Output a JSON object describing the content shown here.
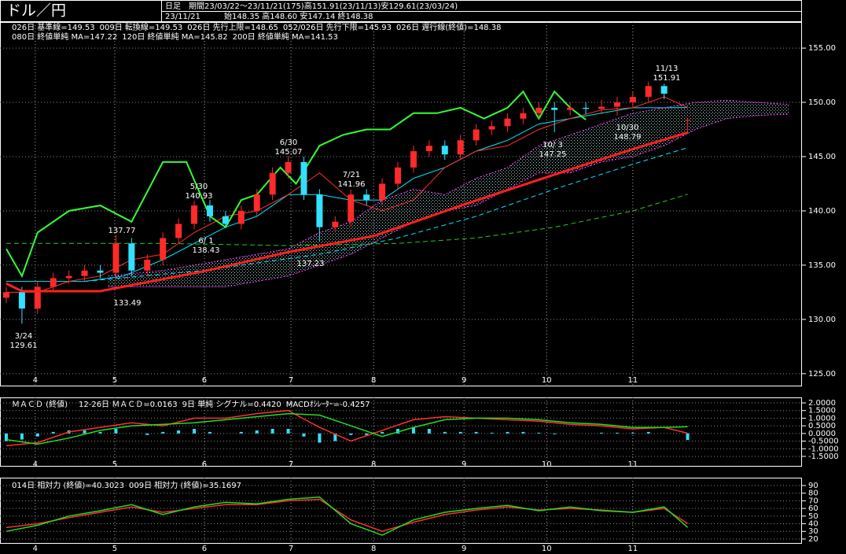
{
  "header": {
    "title": "ドル／円",
    "interval": "日足",
    "period": "期間23/03/22～23/11/21(175)高151.91(23/11/13)安129.61(23/03/24)",
    "date": "23/11/21",
    "ohlc": "始148.35 高148.60 安147.14 終148.38"
  },
  "chart_data": [
    {
      "type": "candlestick",
      "x": [
        0,
        4,
        8,
        12,
        16,
        20,
        24,
        28,
        32,
        36,
        40,
        44,
        48,
        52,
        56,
        60,
        64,
        68,
        72,
        76,
        80,
        84,
        88,
        92,
        96,
        100,
        104,
        108,
        112,
        116,
        120,
        124,
        128,
        132,
        136,
        140,
        144,
        148,
        152,
        156,
        160,
        164,
        168,
        174
      ],
      "open": [
        132.0,
        132.5,
        131.0,
        133.0,
        133.8,
        134.0,
        134.5,
        134.3,
        137.0,
        134.5,
        135.5,
        137.5,
        138.8,
        140.5,
        139.5,
        138.8,
        140.0,
        141.5,
        143.5,
        144.5,
        141.5,
        138.5,
        139.0,
        141.5,
        141.0,
        142.5,
        144.0,
        145.5,
        146.0,
        145.2,
        146.5,
        147.5,
        147.8,
        148.5,
        149.0,
        149.5,
        149.3,
        149.5,
        149.4,
        149.6,
        150.0,
        150.5,
        151.5,
        148.35
      ],
      "high": [
        133.0,
        133.0,
        133.5,
        134.3,
        134.5,
        135.0,
        135.0,
        137.77,
        137.5,
        136.0,
        138.0,
        139.3,
        140.93,
        141.0,
        140.0,
        140.5,
        142.0,
        144.0,
        145.07,
        145.0,
        142.0,
        139.5,
        141.96,
        142.0,
        143.0,
        144.5,
        146.0,
        146.5,
        146.5,
        147.0,
        148.0,
        148.3,
        149.0,
        149.5,
        150.0,
        150.0,
        150.0,
        150.0,
        150.2,
        150.5,
        151.0,
        151.91,
        151.7,
        148.6
      ],
      "low": [
        131.5,
        129.61,
        130.5,
        132.5,
        133.3,
        133.5,
        133.8,
        133.8,
        134.0,
        134.0,
        135.0,
        137.0,
        138.3,
        139.0,
        138.43,
        138.3,
        139.5,
        141.0,
        143.0,
        141.0,
        137.23,
        138.0,
        138.5,
        140.5,
        140.5,
        142.0,
        143.5,
        145.0,
        144.7,
        144.8,
        146.0,
        147.0,
        147.3,
        148.0,
        148.5,
        147.25,
        148.8,
        148.9,
        148.9,
        148.79,
        149.5,
        150.0,
        150.3,
        147.14
      ],
      "close": [
        132.5,
        131.0,
        133.0,
        133.8,
        134.0,
        134.5,
        134.3,
        137.0,
        134.5,
        135.5,
        137.5,
        138.8,
        140.5,
        139.5,
        138.8,
        140.0,
        141.5,
        143.5,
        144.5,
        141.5,
        138.5,
        139.0,
        141.5,
        141.0,
        142.5,
        144.0,
        145.5,
        146.0,
        145.2,
        146.5,
        147.5,
        147.8,
        148.5,
        149.0,
        149.5,
        149.3,
        149.5,
        149.4,
        149.6,
        150.0,
        150.5,
        151.5,
        150.8,
        148.38
      ],
      "up_color": "#ff2a2a",
      "down_color": "#33e0ff",
      "lines": [
        {
          "name": "026日 基準線=149.53",
          "color": "#00e8ff",
          "width": 1,
          "x": [
            0,
            20,
            30,
            40,
            48,
            56,
            64,
            72,
            80,
            88,
            96,
            104,
            112,
            120,
            128,
            136,
            144,
            152,
            160,
            168,
            174
          ],
          "values": [
            133.5,
            133.5,
            134.0,
            135.5,
            137.0,
            138.5,
            139.5,
            141.5,
            141.5,
            141.0,
            141.0,
            143.0,
            144.0,
            145.5,
            146.5,
            148.0,
            148.5,
            149.0,
            149.5,
            149.5,
            149.53
          ]
        },
        {
          "name": "009日 転換線=149.53",
          "color": "#ff3030",
          "width": 1,
          "x": [
            0,
            8,
            16,
            24,
            32,
            40,
            48,
            56,
            64,
            72,
            80,
            88,
            96,
            104,
            112,
            120,
            128,
            136,
            144,
            152,
            160,
            168,
            174
          ],
          "values": [
            132.5,
            132.5,
            133.5,
            134.0,
            135.5,
            136.0,
            138.0,
            139.5,
            140.0,
            141.5,
            143.5,
            141.0,
            140.0,
            141.0,
            144.0,
            145.5,
            146.0,
            147.5,
            148.5,
            149.3,
            149.5,
            150.5,
            149.53
          ]
        },
        {
          "name": "026日 先行上限=148.65",
          "color": "#ff40ff",
          "width": 1,
          "dash": "2,2",
          "x": [
            26,
            40,
            56,
            72,
            80,
            88,
            96,
            104,
            112,
            120,
            128,
            136,
            144,
            152,
            160,
            168,
            176,
            184,
            192,
            200
          ],
          "values": [
            134.0,
            134.5,
            135.5,
            136.5,
            138.0,
            139.0,
            141.0,
            142.0,
            141.5,
            143.0,
            144.0,
            146.0,
            147.0,
            148.0,
            149.0,
            149.5,
            150.0,
            150.2,
            150.0,
            149.8
          ]
        },
        {
          "name": "052/026日 先行下限=145.93",
          "color": "#ff40ff",
          "width": 1,
          "dash": "2,2",
          "x": [
            26,
            40,
            56,
            72,
            80,
            88,
            96,
            104,
            112,
            120,
            128,
            136,
            144,
            152,
            160,
            168,
            176,
            184,
            192,
            200
          ],
          "values": [
            133.0,
            133.0,
            133.0,
            134.0,
            135.0,
            136.0,
            137.5,
            139.0,
            140.0,
            140.5,
            142.0,
            143.5,
            143.5,
            144.5,
            145.0,
            146.0,
            147.5,
            148.5,
            148.8,
            148.9
          ]
        },
        {
          "name": "026日 遅行線(終値)=148.38",
          "color": "#33ff33",
          "width": 2,
          "x": [
            0,
            4,
            8,
            16,
            24,
            32,
            40,
            46,
            52,
            56,
            60,
            64,
            70,
            74,
            80,
            86,
            92,
            98,
            104,
            110,
            116,
            122,
            128,
            132,
            136,
            140,
            144,
            148
          ],
          "values": [
            136.5,
            134.0,
            138.0,
            140.0,
            140.5,
            139.0,
            144.5,
            144.5,
            139.5,
            138.5,
            141.0,
            141.5,
            144.0,
            142.5,
            146.0,
            147.0,
            147.5,
            147.5,
            149.0,
            149.0,
            149.5,
            148.5,
            149.5,
            151.0,
            148.5,
            151.0,
            149.5,
            148.4
          ]
        },
        {
          "name": "080日 終値単純 MA=147.22",
          "color": "#ff2020",
          "width": 3,
          "x": [
            0,
            4,
            24,
            50,
            72,
            94,
            117,
            138,
            160,
            174
          ],
          "values": [
            133.3,
            132.6,
            132.6,
            134.4,
            136.2,
            137.7,
            140.6,
            143.1,
            145.7,
            147.22
          ]
        },
        {
          "name": "120日 終値単純 MA=145.82",
          "color": "#00e8ff",
          "width": 1,
          "dash": "6,4",
          "x": [
            20,
            50,
            80,
            100,
            120,
            140,
            160,
            174
          ],
          "values": [
            133.5,
            134.5,
            136.0,
            137.5,
            139.5,
            142.0,
            144.3,
            145.82
          ]
        },
        {
          "name": "200日 終値単純 MA=141.53",
          "color": "#22cc22",
          "width": 1,
          "dash": "6,4",
          "x": [
            0,
            40,
            72,
            100,
            120,
            140,
            160,
            174
          ],
          "values": [
            137.0,
            137.0,
            136.8,
            137.0,
            137.5,
            138.5,
            140.0,
            141.53
          ]
        }
      ],
      "annotations": [
        {
          "lines": [
            "11/13",
            "151.91"
          ],
          "color": "#ff3030"
        },
        {
          "lines": [
            "10/30",
            "148.79"
          ],
          "color": "#33e0ff"
        },
        {
          "lines": [
            "10/ 3",
            "147.25"
          ],
          "color": "#33e0ff"
        },
        {
          "lines": [
            "7/21",
            "141.96"
          ],
          "color": "#ff3030"
        },
        {
          "lines": [
            "6/30",
            "145.07"
          ],
          "color": "#ff3030"
        },
        {
          "lines": [
            "5/30",
            "140.93"
          ],
          "color": "#ff3030"
        },
        {
          "lines": [
            "137.77"
          ],
          "color": "#ff3030"
        },
        {
          "lines": [
            "6/ 1",
            "138.43"
          ],
          "color": "#33e0ff"
        },
        {
          "lines": [
            "137.23"
          ],
          "color": "#33e0ff"
        },
        {
          "lines": [
            "133.49"
          ],
          "color": "#33e0ff"
        },
        {
          "lines": [
            "3/24",
            "129.61"
          ],
          "color": "#33e0ff"
        }
      ],
      "xlim": [
        -1.6,
        203.2
      ],
      "xticks": [
        {
          "value": 7.4,
          "label": "4"
        },
        {
          "value": 27.7,
          "label": "5"
        },
        {
          "value": 50.6,
          "label": "6"
        },
        {
          "value": 72.7,
          "label": "7"
        },
        {
          "value": 93.8,
          "label": "8"
        },
        {
          "value": 116.9,
          "label": "9"
        },
        {
          "value": 138,
          "label": "10"
        },
        {
          "value": 160,
          "label": "11"
        }
      ],
      "ylim": [
        123.9,
        157.4
      ],
      "yticks": [
        {
          "value": 125,
          "label": "125.00"
        },
        {
          "value": 130,
          "label": "130.00"
        },
        {
          "value": 135,
          "label": "135.00"
        },
        {
          "value": 140,
          "label": "140.00"
        },
        {
          "value": 145,
          "label": "145.00"
        },
        {
          "value": 150,
          "label": "150.00"
        },
        {
          "value": 155,
          "label": "155.00"
        }
      ],
      "grid": true
    },
    {
      "type": "macd",
      "title": "ＭＡＣＤ (終値)",
      "x": [
        0,
        8,
        16,
        24,
        32,
        40,
        48,
        56,
        64,
        72,
        80,
        88,
        96,
        104,
        112,
        120,
        128,
        136,
        144,
        152,
        160,
        168,
        174
      ],
      "series": [
        {
          "name": "12-26日 ＭＡＣＤ=0.0163",
          "color": "#ff3030",
          "values": [
            -0.8,
            -0.6,
            0.1,
            0.4,
            0.7,
            0.5,
            1.0,
            1.0,
            1.3,
            1.5,
            0.4,
            -0.5,
            0.2,
            0.9,
            1.1,
            1.0,
            0.9,
            0.8,
            0.6,
            0.5,
            0.3,
            0.4,
            0.0163
          ]
        },
        {
          "name": "9日 単純 シグナル=0.4420",
          "color": "#22dd22",
          "values": [
            -0.4,
            -0.7,
            -0.3,
            0.2,
            0.5,
            0.6,
            0.7,
            0.9,
            1.1,
            1.3,
            1.2,
            0.5,
            -0.2,
            0.4,
            0.9,
            1.0,
            1.0,
            0.9,
            0.7,
            0.6,
            0.4,
            0.4,
            0.442
          ]
        }
      ],
      "histogram": {
        "name": "MACDｵｼﾚｰﾀｰ=-0.4257",
        "color": "#33e0ff",
        "x": [
          0,
          4,
          8,
          12,
          16,
          20,
          24,
          28,
          32,
          36,
          40,
          44,
          48,
          52,
          56,
          60,
          64,
          68,
          72,
          76,
          80,
          84,
          88,
          92,
          96,
          100,
          104,
          108,
          112,
          116,
          120,
          124,
          128,
          132,
          136,
          140,
          144,
          148,
          152,
          156,
          160,
          164,
          168,
          174
        ],
        "values": [
          -0.5,
          -0.4,
          -0.2,
          0.1,
          0.2,
          0.2,
          0.1,
          0.3,
          0.0,
          -0.1,
          0.1,
          0.2,
          0.3,
          0.1,
          0.0,
          0.1,
          0.2,
          0.3,
          0.3,
          -0.2,
          -0.6,
          -0.5,
          -0.1,
          -0.1,
          0.1,
          0.3,
          0.4,
          0.3,
          0.1,
          0.1,
          0.1,
          0.05,
          0.1,
          0.1,
          0.05,
          -0.05,
          0.0,
          0.0,
          0.05,
          0.05,
          0.05,
          0.1,
          0.0,
          -0.4257
        ]
      },
      "xlim": [
        -1.6,
        203.2
      ],
      "xticks": [
        {
          "value": 7.4,
          "label": "4"
        },
        {
          "value": 27.7,
          "label": "5"
        },
        {
          "value": 50.6,
          "label": "6"
        },
        {
          "value": 72.7,
          "label": "7"
        },
        {
          "value": 93.8,
          "label": "8"
        },
        {
          "value": 116.9,
          "label": "9"
        },
        {
          "value": 138,
          "label": "10"
        },
        {
          "value": 160,
          "label": "11"
        }
      ],
      "ylim": [
        -2.12,
        2.36
      ],
      "yticks": [
        {
          "value": 2,
          "label": "2.0000"
        },
        {
          "value": 1.5,
          "label": "1.5000"
        },
        {
          "value": 1,
          "label": "1.0000"
        },
        {
          "value": 0.5,
          "label": "0.5000"
        },
        {
          "value": 0,
          "label": "0.0000"
        },
        {
          "value": -0.5,
          "label": "-0.5000"
        },
        {
          "value": -1,
          "label": "-1.0000"
        },
        {
          "value": -1.5,
          "label": "-1.5000"
        }
      ],
      "grid": true
    },
    {
      "type": "line",
      "x": [
        0,
        8,
        16,
        24,
        32,
        40,
        48,
        56,
        64,
        72,
        80,
        88,
        96,
        104,
        112,
        120,
        128,
        136,
        144,
        152,
        160,
        168,
        174
      ],
      "series": [
        {
          "name": "014日 相対力 (終値)=40.3023",
          "color": "#ff3030",
          "values": [
            35,
            40,
            48,
            55,
            62,
            55,
            60,
            65,
            65,
            70,
            72,
            45,
            30,
            42,
            52,
            58,
            62,
            58,
            60,
            58,
            55,
            60,
            40.3023
          ]
        },
        {
          "name": "009日 相対力 (終値)=35.1697",
          "color": "#22dd22",
          "values": [
            30,
            38,
            50,
            57,
            65,
            52,
            62,
            68,
            66,
            72,
            75,
            40,
            25,
            45,
            55,
            60,
            64,
            57,
            62,
            57,
            55,
            62,
            35.1697
          ]
        }
      ],
      "xlim": [
        -1.6,
        203.2
      ],
      "xticks": [
        {
          "value": 7.4,
          "label": "4"
        },
        {
          "value": 27.7,
          "label": "5"
        },
        {
          "value": 50.6,
          "label": "6"
        },
        {
          "value": 72.7,
          "label": "7"
        },
        {
          "value": 93.8,
          "label": "8"
        },
        {
          "value": 116.9,
          "label": "9"
        },
        {
          "value": 138,
          "label": "10"
        },
        {
          "value": 160,
          "label": "11"
        }
      ],
      "ylim": [
        14.8,
        100.3
      ],
      "yticks": [
        20,
        30,
        40,
        50,
        60,
        70,
        80,
        90
      ],
      "grid": true
    }
  ]
}
